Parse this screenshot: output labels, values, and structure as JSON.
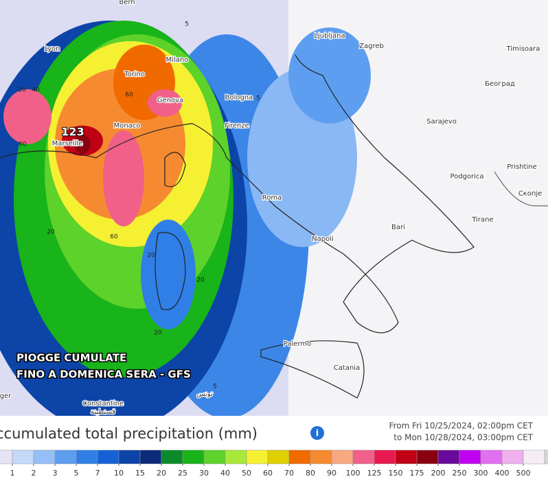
{
  "map": {
    "cities": [
      "Bern",
      "Lyon",
      "Torino",
      "Milano",
      "Ljubljana",
      "Zagreb",
      "Timisoara",
      "Bologna",
      "Genova",
      "Monaco",
      "Marseille",
      "Firenze",
      "Београд",
      "Sarajevo",
      "Podgorica",
      "Prishtine",
      "Roma",
      "Скопје",
      "Tirane",
      "Bari",
      "Napoli",
      "Palermo",
      "Catania",
      "Constantine",
      "قسنطينة",
      "تونس",
      "ger"
    ],
    "contour_labels": [
      123,
      5,
      20,
      40,
      60,
      60,
      20,
      60,
      20,
      20,
      20,
      5,
      5
    ],
    "overlay_title": [
      "PIOGGE CUMULATE",
      "FINO A DOMENICA SERA - GFS"
    ]
  },
  "legend": {
    "title": "ccumulated total precipitation (mm)",
    "from": "From Fri 10/25/2024, 02:00pm CET",
    "to": "to Mon 10/28/2024, 03:00pm CET",
    "ticks": [
      1,
      2,
      3,
      5,
      7,
      10,
      15,
      20,
      25,
      30,
      40,
      50,
      60,
      70,
      80,
      90,
      100,
      125,
      150,
      175,
      200,
      250,
      300,
      400,
      500
    ],
    "colors": [
      "#e6e4f4",
      "#c4d8f8",
      "#94c0f7",
      "#5d9ef0",
      "#2f7fe6",
      "#1462d6",
      "#0c44a8",
      "#0b2a78",
      "#0a8a2a",
      "#19b31a",
      "#5cd22a",
      "#a8e83a",
      "#f5f032",
      "#e0d000",
      "#f06a00",
      "#f68a30",
      "#f8a880",
      "#f06088",
      "#e81a50",
      "#c00014",
      "#8a0010",
      "#6a0a9a",
      "#c000f0",
      "#e070f0",
      "#f0b0f0"
    ]
  }
}
